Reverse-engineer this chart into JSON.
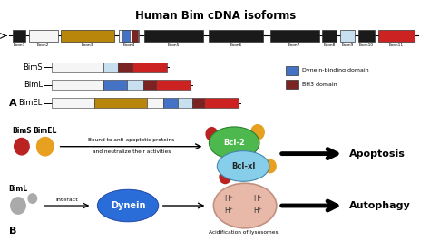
{
  "title": "Human Bim cDNA isoforms",
  "bg_color": "#ffffff",
  "exon_labels": [
    "Exon1",
    "Exon2",
    "Exon3",
    "Exon4",
    "Exon5",
    "Exon6",
    "Exon7",
    "Exon8",
    "Exon9",
    "Exon10",
    "Exon11"
  ],
  "exon_colors": [
    "#1a1a1a",
    "#f5f5f5",
    "#b8860b",
    "#f5f5f5",
    "#1a1a1a",
    "#1a1a1a",
    "#1a1a1a",
    "#1a1a1a",
    "#c8dff0",
    "#1a1a1a",
    "#cc2222"
  ],
  "exon4_blue": "#4472c4",
  "exon4_bh3": "#7b2222",
  "exon9_brown": "#7b2222",
  "dynein_blue": "#4472c4",
  "bh3_dark": "#7b2222",
  "light_blue": "#c8dff0",
  "gold": "#b8860b",
  "red": "#cc2222",
  "white_seg": "#f5f5f5",
  "legend_dynein": "#4472c4",
  "legend_bh3": "#7b2222",
  "bcl2_green": "#4db84d",
  "bclxl_blue": "#87ceeb",
  "dynein_oval": "#2a6dd9",
  "lyso_pink": "#e8b8a8",
  "lyso_edge": "#c09080",
  "red_circle": "#bb2222",
  "orange_circle": "#e8a020",
  "grey_circle": "#aaaaaa"
}
